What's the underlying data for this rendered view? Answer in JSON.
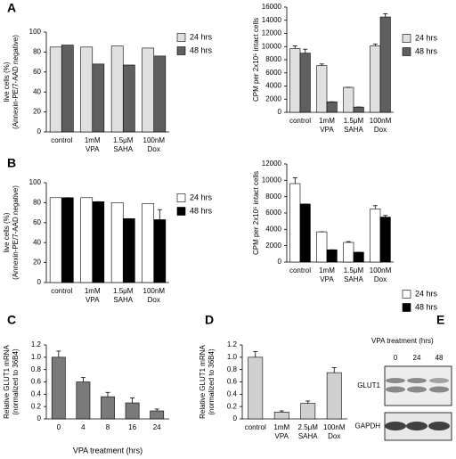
{
  "chart_data": [
    {
      "type": "bar",
      "panel": "A",
      "ylabel": [
        "live cells (%)",
        "(Annexin-PE/7-AAD negative)"
      ],
      "categories": [
        [
          "control"
        ],
        [
          "1mM",
          "VPA"
        ],
        [
          "1.5μM",
          "SAHA"
        ],
        [
          "100nM",
          "Dox"
        ]
      ],
      "series": [
        {
          "name": "24 hrs",
          "color": "#e0e0e0",
          "values": [
            85,
            85,
            86,
            84
          ]
        },
        {
          "name": "48 hrs",
          "color": "#5f5f5f",
          "values": [
            87,
            68,
            67,
            76
          ]
        }
      ],
      "ylim": [
        0,
        100
      ],
      "yticks": [
        0,
        20,
        40,
        60,
        80,
        100
      ],
      "legend": "upper right"
    },
    {
      "type": "bar",
      "ylabel": [
        "CPM per 2x10⁵ intact cells"
      ],
      "categories": [
        [
          "control"
        ],
        [
          "1mM",
          "VPA"
        ],
        [
          "1.5μM",
          "SAHA"
        ],
        [
          "100nM",
          "Dox"
        ]
      ],
      "series": [
        {
          "name": "24 hrs",
          "color": "#e0e0e0",
          "values": [
            9700,
            7100,
            3800,
            10100
          ],
          "errors": [
            400,
            250,
            0,
            300
          ]
        },
        {
          "name": "48 hrs",
          "color": "#5f5f5f",
          "values": [
            9000,
            1600,
            800,
            14500
          ],
          "errors": [
            600,
            0,
            0,
            500
          ]
        }
      ],
      "ylim": [
        0,
        16000
      ],
      "yticks": [
        0,
        2000,
        4000,
        6000,
        8000,
        10000,
        12000,
        14000,
        16000
      ],
      "legend": "upper right"
    },
    {
      "type": "bar",
      "panel": "B",
      "ylabel": [
        "live cells (%)",
        "(Annexin-PE/7-AAD negative)"
      ],
      "categories": [
        [
          "control"
        ],
        [
          "1mM",
          "VPA"
        ],
        [
          "1.5μM",
          "SAHA"
        ],
        [
          "100nM",
          "Dox"
        ]
      ],
      "series": [
        {
          "name": "24 hrs",
          "color": "#ffffff",
          "values": [
            85,
            85,
            80,
            79
          ]
        },
        {
          "name": "48 hrs",
          "color": "#000000",
          "values": [
            85,
            81,
            64,
            63
          ],
          "errors": [
            0,
            0,
            0,
            10
          ]
        }
      ],
      "ylim": [
        0,
        100
      ],
      "yticks": [
        0,
        20,
        40,
        60,
        80,
        100
      ],
      "legend": "upper right"
    },
    {
      "type": "bar",
      "ylabel": [
        "CPM per 2x10⁵ intact cells"
      ],
      "categories": [
        [
          "control"
        ],
        [
          "1mM",
          "VPA"
        ],
        [
          "1.5μM",
          "SAHA"
        ],
        [
          "100nM",
          "Dox"
        ]
      ],
      "series": [
        {
          "name": "24 hrs",
          "color": "#ffffff",
          "values": [
            9600,
            3700,
            2400,
            6500
          ],
          "errors": [
            700,
            0,
            100,
            400
          ]
        },
        {
          "name": "48 hrs",
          "color": "#000000",
          "values": [
            7100,
            1500,
            1200,
            5500
          ],
          "errors": [
            0,
            0,
            0,
            200
          ]
        }
      ],
      "ylim": [
        0,
        12000
      ],
      "yticks": [
        0,
        2000,
        4000,
        6000,
        8000,
        10000,
        12000
      ],
      "legend": "lower right"
    },
    {
      "type": "bar",
      "panel": "C",
      "ylabel": [
        "Relative  GLUT1 mRNA",
        "(normalized to 36B4)"
      ],
      "xlabel": "VPA treatment (hrs)",
      "categories": [
        [
          "0"
        ],
        [
          "4"
        ],
        [
          "8"
        ],
        [
          "16"
        ],
        [
          "24"
        ]
      ],
      "series": [
        {
          "color": "#7a7a7a",
          "values": [
            1.0,
            0.6,
            0.36,
            0.26,
            0.13
          ],
          "errors": [
            0.1,
            0.07,
            0.07,
            0.08,
            0.03
          ]
        }
      ],
      "ylim": [
        0,
        1.2
      ],
      "yticks": [
        0,
        0.2,
        0.4,
        0.6,
        0.8,
        {
          "value": 1,
          "label": "1.0"
        },
        1.2
      ]
    },
    {
      "type": "bar",
      "panel": "D",
      "ylabel": [
        "Relative GLUT1 mRNA",
        "(normalized to 36B4)"
      ],
      "categories": [
        [
          "control"
        ],
        [
          "1mM",
          "VPA"
        ],
        [
          "2.5μM",
          "SAHA"
        ],
        [
          "100nM",
          "Dox"
        ]
      ],
      "series": [
        {
          "color": "#cfcfcf",
          "values": [
            1.0,
            0.11,
            0.25,
            0.75
          ],
          "errors": [
            0.09,
            0.02,
            0.04,
            0.08
          ]
        }
      ],
      "ylim": [
        0,
        1.2
      ],
      "yticks": [
        0,
        0.2,
        0.4,
        0.6,
        0.8,
        {
          "value": 1,
          "label": "1.0"
        },
        1.2
      ]
    },
    {
      "type": "blot",
      "panel": "E",
      "title": "VPA treatment (hrs)",
      "lanes": [
        "0",
        "24",
        "48"
      ],
      "rows": [
        "GLUT1",
        "GAPDH"
      ]
    }
  ]
}
